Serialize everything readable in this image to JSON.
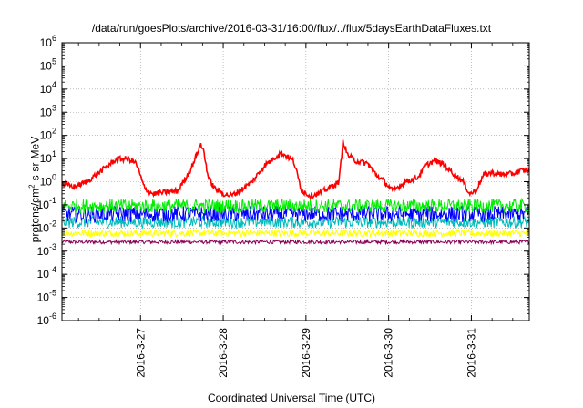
{
  "chart_data": {
    "type": "line",
    "title": "/data/run/goesPlots/archive/2016-03-31/16:00/flux/../flux/5daysEarthDataFluxes.txt",
    "xlabel": "Coordinated Universal Time (UTC)",
    "ylabel": {
      "pre": "protons/cm",
      "sup": "2",
      "post": "-s-sr-MeV"
    },
    "y_scale": "log",
    "ylim_exp": [
      -6,
      6
    ],
    "y_tick_exponents": [
      -6,
      -5,
      -4,
      -3,
      -2,
      -1,
      0,
      1,
      2,
      3,
      4,
      5,
      6
    ],
    "y_tick_base": "10",
    "xlim_days": [
      26.05,
      31.7
    ],
    "x_ticks": [
      {
        "day": 27,
        "label": "2016-3-27"
      },
      {
        "day": 28,
        "label": "2016-3-28"
      },
      {
        "day": 29,
        "label": "2016-3-29"
      },
      {
        "day": 30,
        "label": "2016-3-30"
      },
      {
        "day": 31,
        "label": "2016-3-31"
      }
    ],
    "grid": true,
    "series": [
      {
        "color": "#ff0000",
        "noise": 0.12,
        "points": [
          [
            26.05,
            0.8
          ],
          [
            26.2,
            0.6
          ],
          [
            26.35,
            1.0
          ],
          [
            26.5,
            2.5
          ],
          [
            26.7,
            9.0
          ],
          [
            26.85,
            10.0
          ],
          [
            26.95,
            6.0
          ],
          [
            27.05,
            0.5
          ],
          [
            27.15,
            0.3
          ],
          [
            27.3,
            0.35
          ],
          [
            27.45,
            0.4
          ],
          [
            27.6,
            3.0
          ],
          [
            27.68,
            15.0
          ],
          [
            27.72,
            40.0
          ],
          [
            27.76,
            25.0
          ],
          [
            27.82,
            1.5
          ],
          [
            27.9,
            0.5
          ],
          [
            28.0,
            0.3
          ],
          [
            28.1,
            0.25
          ],
          [
            28.2,
            0.4
          ],
          [
            28.35,
            1.0
          ],
          [
            28.5,
            5.0
          ],
          [
            28.7,
            18.0
          ],
          [
            28.85,
            8.0
          ],
          [
            28.95,
            0.4
          ],
          [
            29.05,
            0.25
          ],
          [
            29.15,
            0.3
          ],
          [
            29.3,
            0.6
          ],
          [
            29.4,
            1.0
          ],
          [
            29.45,
            60.0
          ],
          [
            29.5,
            15.0
          ],
          [
            29.6,
            8.0
          ],
          [
            29.75,
            6.0
          ],
          [
            29.85,
            2.0
          ],
          [
            29.95,
            1.0
          ],
          [
            30.05,
            0.4
          ],
          [
            30.2,
            1.0
          ],
          [
            30.35,
            1.5
          ],
          [
            30.45,
            5.0
          ],
          [
            30.55,
            8.0
          ],
          [
            30.65,
            6.0
          ],
          [
            30.8,
            2.0
          ],
          [
            30.9,
            1.0
          ],
          [
            30.98,
            0.3
          ],
          [
            31.05,
            0.4
          ],
          [
            31.15,
            2.0
          ],
          [
            31.25,
            2.5
          ],
          [
            31.35,
            2.0
          ],
          [
            31.5,
            2.2
          ],
          [
            31.6,
            3.0
          ],
          [
            31.7,
            3.0
          ]
        ]
      },
      {
        "color": "#00ee00",
        "points": [
          [
            26.05,
            0.09
          ],
          [
            31.7,
            0.09
          ]
        ],
        "noise": 0.3
      },
      {
        "color": "#0000ff",
        "points": [
          [
            26.05,
            0.04
          ],
          [
            31.7,
            0.04
          ]
        ],
        "noise": 0.35
      },
      {
        "color": "#00bbbb",
        "points": [
          [
            26.05,
            0.018
          ],
          [
            31.7,
            0.018
          ]
        ],
        "noise": 0.25
      },
      {
        "color": "#ffff00",
        "points": [
          [
            26.05,
            0.006
          ],
          [
            31.7,
            0.006
          ]
        ],
        "noise": 0.15
      },
      {
        "color": "#880055",
        "points": [
          [
            26.05,
            0.0025
          ],
          [
            31.7,
            0.0025
          ]
        ],
        "noise": 0.08
      }
    ]
  }
}
